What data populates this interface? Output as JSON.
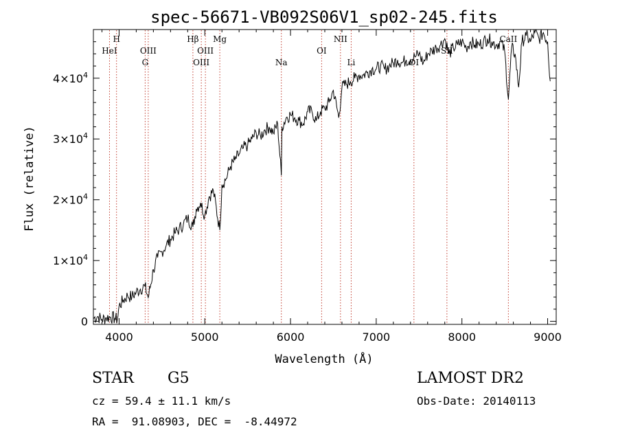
{
  "chart_data": {
    "type": "line",
    "title": "spec-56671-VB092S06V1_sp02-245.fits",
    "xlabel": "Wavelength (Å)",
    "ylabel": "Flux (relative)",
    "xlim": [
      3700,
      9100
    ],
    "ylim": [
      -500,
      48000
    ],
    "x_ticks": [
      4000,
      5000,
      6000,
      7000,
      8000,
      9000
    ],
    "x_tick_labels": [
      "4000",
      "5000",
      "6000",
      "7000",
      "8000",
      "9000"
    ],
    "y_ticks": [
      0,
      10000,
      20000,
      30000,
      40000
    ],
    "y_tick_labels": [
      {
        "base": "0",
        "exp": ""
      },
      {
        "base": "1×10",
        "exp": "4"
      },
      {
        "base": "2×10",
        "exp": "4"
      },
      {
        "base": "3×10",
        "exp": "4"
      },
      {
        "base": "4×10",
        "exp": "4"
      }
    ],
    "grid": false,
    "series": [
      {
        "color": "#000000",
        "x": [
          3700,
          3750,
          3800,
          3850,
          3900,
          3950,
          3980,
          4000,
          4050,
          4100,
          4150,
          4200,
          4250,
          4300,
          4340,
          4400,
          4450,
          4500,
          4550,
          4600,
          4650,
          4700,
          4750,
          4800,
          4861,
          4900,
          4950,
          5000,
          5050,
          5100,
          5175,
          5200,
          5250,
          5300,
          5350,
          5400,
          5450,
          5500,
          5550,
          5600,
          5650,
          5700,
          5750,
          5800,
          5850,
          5893,
          5900,
          5950,
          6000,
          6050,
          6100,
          6150,
          6200,
          6250,
          6300,
          6350,
          6400,
          6450,
          6500,
          6563,
          6600,
          6650,
          6700,
          6750,
          6800,
          6850,
          6900,
          6950,
          7000,
          7050,
          7100,
          7150,
          7200,
          7250,
          7300,
          7350,
          7400,
          7450,
          7500,
          7550,
          7600,
          7650,
          7700,
          7750,
          7800,
          7850,
          7900,
          7950,
          8000,
          8050,
          8100,
          8150,
          8200,
          8250,
          8300,
          8350,
          8400,
          8450,
          8498,
          8542,
          8580,
          8620,
          8662,
          8700,
          8750,
          8800,
          8850,
          8900,
          8950,
          9000,
          9030
        ],
        "y": [
          500,
          800,
          300,
          600,
          700,
          500,
          300,
          2500,
          3500,
          4200,
          4000,
          4800,
          5300,
          5800,
          3900,
          8500,
          10500,
          11500,
          12500,
          13500,
          14500,
          15200,
          16000,
          17000,
          15500,
          18500,
          19500,
          17500,
          20500,
          21500,
          15000,
          22500,
          23500,
          25500,
          26500,
          27500,
          28500,
          29000,
          30000,
          31000,
          30500,
          31500,
          32000,
          31000,
          32500,
          24000,
          32000,
          33500,
          34000,
          33500,
          33000,
          32500,
          34500,
          34500,
          33000,
          34500,
          35000,
          36000,
          38000,
          33500,
          38500,
          39000,
          39500,
          40000,
          40500,
          40500,
          41000,
          41500,
          41500,
          42000,
          41500,
          42000,
          42500,
          43000,
          42500,
          43000,
          43000,
          43500,
          44000,
          42500,
          44000,
          44500,
          45000,
          45500,
          46500,
          44000,
          45000,
          45500,
          46000,
          45000,
          46000,
          45500,
          45500,
          46000,
          46500,
          46000,
          45500,
          46000,
          44500,
          36500,
          45000,
          44000,
          38500,
          46000,
          47000,
          46000,
          47500,
          46500,
          47500,
          46000,
          39500
        ]
      }
    ],
    "spectral_lines": [
      {
        "label": "H",
        "x": 3970,
        "row": 0,
        "dx": 0
      },
      {
        "label": "HeI",
        "x": 3888,
        "row": 1,
        "dx": 0
      },
      {
        "label": "OIII",
        "x": 4340,
        "row": 1,
        "dx": 0
      },
      {
        "label": "G",
        "x": 4304,
        "row": 2,
        "dx": 0
      },
      {
        "label": "Hβ",
        "x": 4861,
        "row": 0,
        "dx": 0
      },
      {
        "label": "OIII",
        "x": 5007,
        "row": 1,
        "dx": 0
      },
      {
        "label": "OIII",
        "x": 4959,
        "row": 2,
        "dx": 0
      },
      {
        "label": "Mg",
        "x": 5175,
        "row": 0,
        "dx": 0
      },
      {
        "label": "Na",
        "x": 5893,
        "row": 2,
        "dx": 0
      },
      {
        "label": "OI",
        "x": 6363,
        "row": 1,
        "dx": 0
      },
      {
        "label": "NII",
        "x": 6583,
        "row": 0,
        "dx": 0
      },
      {
        "label": "Li",
        "x": 6708,
        "row": 2,
        "dx": 0
      },
      {
        "label": "OI",
        "x": 7440,
        "row": 2,
        "dx": 0
      },
      {
        "label": "SII",
        "x": 7825,
        "row": 1,
        "dx": 0
      },
      {
        "label": "CaII",
        "x": 8542,
        "row": 0,
        "dx": 0
      }
    ]
  },
  "info": {
    "object_class": "STAR",
    "subclass": "G5",
    "survey": "LAMOST DR2",
    "velocity": "cz = 59.4 ± 11.1 km/s",
    "obs_date": "Obs-Date: 20140113",
    "coords": "RA =  91.08903, DEC =  -8.44972"
  }
}
